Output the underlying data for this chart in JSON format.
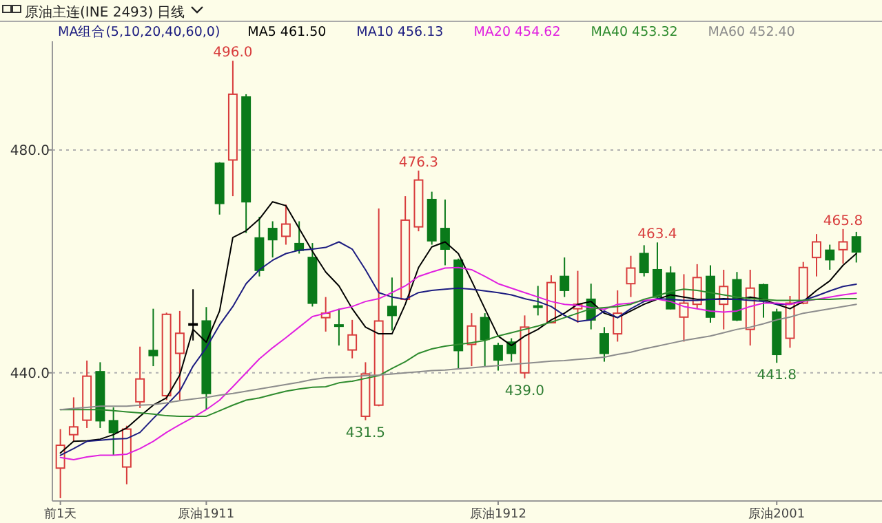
{
  "chart_data": {
    "type": "candlestick",
    "title": "原油主连(INE 2493)",
    "subtitle": "日线",
    "legend_title": "MA组合(5,10,20,40,60,0)",
    "legend": "top",
    "grid": "y",
    "ylim": [
      417,
      499.5
    ],
    "yticks": [
      {
        "value": 440,
        "label": "440.0"
      },
      {
        "value": 480,
        "label": "480.0"
      }
    ],
    "categories": [
      "前1天",
      null,
      null,
      null,
      null,
      null,
      null,
      null,
      null,
      null,
      null,
      "原油1911",
      null,
      null,
      null,
      null,
      null,
      null,
      null,
      null,
      null,
      null,
      null,
      null,
      null,
      null,
      null,
      null,
      null,
      null,
      null,
      null,
      null,
      "原油1912",
      null,
      null,
      null,
      null,
      null,
      null,
      null,
      null,
      null,
      null,
      null,
      null,
      null,
      null,
      null,
      null,
      null,
      null,
      null,
      null,
      "原油2001",
      null,
      null,
      null,
      null,
      null,
      null
    ],
    "ohlc": [
      [
        422.9,
        429.9,
        417.5,
        427.0
      ],
      [
        428.9,
        435.6,
        427.7,
        430.3
      ],
      [
        431.5,
        442.2,
        430.1,
        439.4
      ],
      [
        440.2,
        441.9,
        430.1,
        431.4
      ],
      [
        431.4,
        433.8,
        425.2,
        429.3
      ],
      [
        423.1,
        430.5,
        420.0,
        429.9
      ],
      [
        434.8,
        444.7,
        433.7,
        438.9
      ],
      [
        444.0,
        451.5,
        441.2,
        443.1
      ],
      [
        435.9,
        450.8,
        435.1,
        450.5
      ],
      [
        443.5,
        451.1,
        435.1,
        447.1
      ],
      [
        448.8,
        455.0,
        445.8,
        448.8
      ],
      [
        449.3,
        451.8,
        433.4,
        436.3
      ],
      [
        477.6,
        477.8,
        468.4,
        470.4
      ],
      [
        478.2,
        496.0,
        471.7,
        490.0
      ],
      [
        489.5,
        490.0,
        465.1,
        470.7
      ],
      [
        464.2,
        468.0,
        457.3,
        458.4
      ],
      [
        465.9,
        467.2,
        460.7,
        463.9
      ],
      [
        464.5,
        470.2,
        463.0,
        466.7
      ],
      [
        463.2,
        467.2,
        461.4,
        462.0
      ],
      [
        460.7,
        463.3,
        451.9,
        452.5
      ],
      [
        449.9,
        453.6,
        447.4,
        450.7
      ],
      [
        448.6,
        451.5,
        444.9,
        448.4
      ],
      [
        444.1,
        449.5,
        442.6,
        446.8
      ],
      [
        432.2,
        441.9,
        431.5,
        439.8
      ],
      [
        434.2,
        469.5,
        434.0,
        449.3
      ],
      [
        451.9,
        457.1,
        447.6,
        450.3
      ],
      [
        453.2,
        471.7,
        453.0,
        467.4
      ],
      [
        466.2,
        476.3,
        465.4,
        474.6
      ],
      [
        471.1,
        472.5,
        463.0,
        463.7
      ],
      [
        465.9,
        471.1,
        459.3,
        462.2
      ],
      [
        460.2,
        460.5,
        440.7,
        444.0
      ],
      [
        445.1,
        450.7,
        441.2,
        448.4
      ],
      [
        449.9,
        450.7,
        441.2,
        446.0
      ],
      [
        444.9,
        445.4,
        440.4,
        442.3
      ],
      [
        445.5,
        446.2,
        442.0,
        443.5
      ],
      [
        440.0,
        450.3,
        439.0,
        448.2
      ],
      [
        452.0,
        455.6,
        450.3,
        451.8
      ],
      [
        449.0,
        457.5,
        448.9,
        456.2
      ],
      [
        457.3,
        460.7,
        453.6,
        454.8
      ],
      [
        451.5,
        458.3,
        449.0,
        452.3
      ],
      [
        453.2,
        456.0,
        447.8,
        449.5
      ],
      [
        447.0,
        448.2,
        442.0,
        443.5
      ],
      [
        447.0,
        454.8,
        445.6,
        450.7
      ],
      [
        456.0,
        461.0,
        453.6,
        458.8
      ],
      [
        461.4,
        462.9,
        457.3,
        458.0
      ],
      [
        458.5,
        463.4,
        453.2,
        453.6
      ],
      [
        457.9,
        459.1,
        451.4,
        451.5
      ],
      [
        450.0,
        457.7,
        445.6,
        452.5
      ],
      [
        452.3,
        459.5,
        451.5,
        457.1
      ],
      [
        457.3,
        459.3,
        449.0,
        450.0
      ],
      [
        452.3,
        458.5,
        447.8,
        455.5
      ],
      [
        456.7,
        458.1,
        449.3,
        449.5
      ],
      [
        447.8,
        458.5,
        444.9,
        455.2
      ],
      [
        455.8,
        456.0,
        449.9,
        453.0
      ],
      [
        450.9,
        451.5,
        441.8,
        443.3
      ],
      [
        446.2,
        453.8,
        444.5,
        452.5
      ],
      [
        452.5,
        459.9,
        452.3,
        458.9
      ],
      [
        460.7,
        464.9,
        457.3,
        463.5
      ],
      [
        462.0,
        463.0,
        458.5,
        460.3
      ],
      [
        462.1,
        465.8,
        459.6,
        463.5
      ],
      [
        464.4,
        465.3,
        459.8,
        461.7
      ]
    ],
    "colors": [
      "#d83c3c",
      "#d83c3c",
      "#d83c3c",
      "#0a7a1a",
      "#0a7a1a",
      "#d83c3c",
      "#d83c3c",
      "#0a7a1a",
      "#d83c3c",
      "#d83c3c",
      "#000000",
      "#0a7a1a",
      "#0a7a1a",
      "#d83c3c",
      "#0a7a1a",
      "#0a7a1a",
      "#0a7a1a",
      "#d83c3c",
      "#0a7a1a",
      "#0a7a1a",
      "#d83c3c",
      "#0a7a1a",
      "#d83c3c",
      "#d83c3c",
      "#d83c3c",
      "#0a7a1a",
      "#d83c3c",
      "#d83c3c",
      "#0a7a1a",
      "#0a7a1a",
      "#0a7a1a",
      "#d83c3c",
      "#0a7a1a",
      "#0a7a1a",
      "#0a7a1a",
      "#d83c3c",
      "#0a7a1a",
      "#d83c3c",
      "#0a7a1a",
      "#d83c3c",
      "#0a7a1a",
      "#0a7a1a",
      "#d83c3c",
      "#d83c3c",
      "#0a7a1a",
      "#0a7a1a",
      "#0a7a1a",
      "#d83c3c",
      "#d83c3c",
      "#0a7a1a",
      "#d83c3c",
      "#0a7a1a",
      "#d83c3c",
      "#0a7a1a",
      "#0a7a1a",
      "#d83c3c",
      "#d83c3c",
      "#d83c3c",
      "#0a7a1a",
      "#d83c3c",
      "#0a7a1a"
    ],
    "series": [
      {
        "name": "MA5 461.50",
        "type": "line",
        "color": "#000000",
        "values": [
          425.6,
          427.7,
          427.8,
          428.1,
          428.9,
          430.1,
          432.2,
          434.2,
          435.5,
          439.6,
          447.8,
          445.5,
          451.1,
          464.3,
          465.5,
          467.6,
          470.7,
          470.0,
          465.9,
          461.8,
          458.1,
          455.6,
          451.5,
          448.2,
          447.0,
          447.0,
          452.3,
          458.9,
          462.6,
          463.5,
          461.4,
          456.5,
          451.5,
          446.6,
          444.9,
          446.6,
          447.8,
          449.5,
          450.7,
          452.3,
          452.8,
          450.7,
          449.9,
          451.1,
          452.3,
          453.2,
          454.0,
          453.6,
          453.2,
          453.2,
          453.3,
          453.2,
          453.6,
          453.2,
          452.3,
          451.5,
          452.8,
          454.8,
          456.5,
          459.3,
          461.4
        ]
      },
      {
        "name": "MA10 456.13",
        "type": "line",
        "color": "#1c1c80",
        "values": [
          425.2,
          426.4,
          427.7,
          427.9,
          428.1,
          428.2,
          429.3,
          431.8,
          434.2,
          436.7,
          441.2,
          444.5,
          448.6,
          451.9,
          456.0,
          458.5,
          460.2,
          461.4,
          462.0,
          462.2,
          462.5,
          463.5,
          462.2,
          458.5,
          454.4,
          453.6,
          453.2,
          454.4,
          454.8,
          455.0,
          455.2,
          455.0,
          454.7,
          454.4,
          454.0,
          453.3,
          452.8,
          451.9,
          450.3,
          449.2,
          449.5,
          451.1,
          449.9,
          451.5,
          452.8,
          453.3,
          453.2,
          453.0,
          453.0,
          453.2,
          453.2,
          453.2,
          453.0,
          452.8,
          452.3,
          452.3,
          453.0,
          453.8,
          454.7,
          455.5,
          455.9
        ]
      },
      {
        "name": "MA20 454.62",
        "type": "line",
        "color": "#e020e0",
        "values": [
          424.8,
          424.4,
          424.9,
          425.2,
          425.2,
          425.4,
          426.4,
          427.7,
          429.3,
          430.7,
          432.0,
          433.4,
          435.1,
          437.5,
          440.0,
          442.5,
          444.5,
          446.3,
          448.2,
          450.1,
          450.7,
          451.4,
          451.9,
          452.8,
          453.3,
          454.4,
          455.6,
          457.3,
          458.1,
          458.8,
          458.9,
          458.5,
          457.3,
          456.0,
          455.2,
          454.4,
          453.6,
          452.8,
          452.3,
          452.1,
          451.7,
          451.4,
          452.3,
          452.5,
          453.0,
          453.2,
          452.8,
          451.9,
          451.5,
          451.1,
          450.9,
          451.1,
          451.9,
          452.5,
          452.5,
          452.3,
          452.8,
          453.2,
          453.6,
          454.0,
          454.3
        ]
      },
      {
        "name": "MA40 453.32",
        "type": "line",
        "color": "#2e8b2e",
        "values": [
          433.4,
          433.4,
          433.4,
          433.4,
          433.2,
          433.0,
          432.8,
          432.6,
          432.3,
          432.2,
          432.2,
          432.2,
          433.2,
          434.2,
          435.1,
          435.5,
          436.1,
          436.7,
          437.1,
          437.4,
          437.5,
          438.2,
          438.5,
          439.0,
          439.5,
          440.8,
          442.0,
          443.5,
          444.3,
          444.8,
          445.1,
          445.4,
          445.8,
          446.6,
          447.2,
          447.8,
          448.4,
          449.1,
          449.9,
          450.7,
          451.5,
          451.7,
          451.9,
          452.3,
          453.2,
          453.8,
          454.6,
          455.0,
          454.8,
          454.4,
          454.0,
          453.6,
          453.3,
          453.2,
          453.0,
          453.0,
          453.0,
          453.2,
          453.2,
          453.3,
          453.3
        ]
      },
      {
        "name": "MA60 452.40",
        "type": "line",
        "color": "#8c8c8c",
        "values": [
          433.4,
          433.6,
          433.8,
          434.0,
          434.0,
          434.0,
          434.2,
          434.3,
          434.6,
          435.0,
          435.3,
          435.6,
          436.0,
          436.3,
          436.7,
          437.1,
          437.5,
          437.9,
          438.3,
          438.8,
          439.1,
          439.2,
          439.3,
          439.5,
          439.6,
          439.8,
          440.0,
          440.2,
          440.4,
          440.5,
          440.7,
          440.9,
          441.1,
          441.3,
          441.5,
          441.7,
          441.9,
          442.1,
          442.2,
          442.4,
          442.6,
          442.8,
          443.3,
          443.7,
          444.3,
          444.8,
          445.3,
          445.8,
          446.2,
          446.6,
          447.2,
          447.8,
          448.2,
          448.8,
          449.5,
          450.0,
          450.7,
          451.1,
          451.5,
          451.9,
          452.3
        ]
      }
    ],
    "annotations": [
      {
        "text": "496.0",
        "y": 496.0
      },
      {
        "text": "476.3",
        "y": 476.3
      },
      {
        "text": "431.5",
        "y": 431.5
      },
      {
        "text": "439.0",
        "y": 439.0
      },
      {
        "text": "463.4",
        "y": 463.4
      },
      {
        "text": "441.8",
        "y": 441.8
      },
      {
        "text": "465.8",
        "y": 465.8
      }
    ]
  }
}
